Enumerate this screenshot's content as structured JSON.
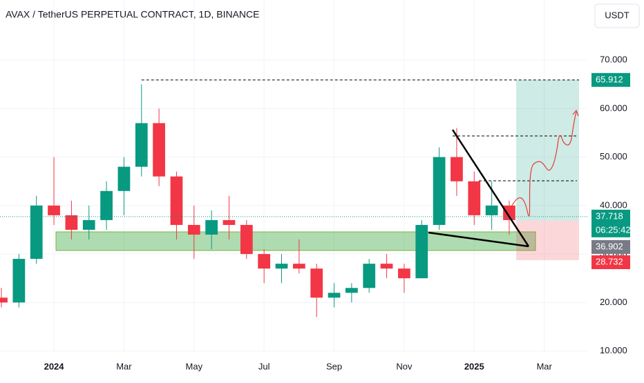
{
  "chart_data": {
    "type": "candlestick",
    "title": "AVAX / TetherUS PERPETUAL CONTRACT, 1D, BINANCE",
    "currency": "USDT",
    "x": [
      -1.5,
      -1.0,
      -0.5,
      0.0,
      0.5,
      1.0,
      1.5,
      2.0,
      2.5,
      3.0,
      3.5,
      4.0,
      4.5,
      5.0,
      5.5,
      6.0,
      6.5,
      7.0,
      7.5,
      8.0,
      8.5,
      9.0,
      9.5,
      10.0,
      10.5,
      11.0,
      11.5,
      12.0,
      12.5,
      13.0
    ],
    "open": [
      21,
      20,
      29,
      40,
      38,
      35,
      37,
      43,
      48,
      57,
      46,
      36,
      34,
      37,
      36,
      30,
      27,
      28,
      27,
      21,
      22,
      23,
      28,
      27,
      25,
      36,
      50,
      45,
      38,
      40
    ],
    "high": [
      23,
      30,
      42,
      50,
      41,
      40,
      45,
      50,
      65,
      60,
      47,
      40,
      39,
      42,
      37,
      31,
      30,
      33,
      28,
      24,
      24,
      29,
      30,
      28,
      37,
      52,
      56,
      47,
      45,
      41
    ],
    "low": [
      19,
      19,
      28,
      36,
      33,
      33,
      35,
      38,
      46,
      44,
      33,
      29,
      31,
      33,
      29,
      24,
      24,
      26,
      17,
      19,
      20,
      22,
      25,
      22,
      25,
      35,
      42,
      36,
      35,
      34
    ],
    "close": [
      20,
      29,
      40,
      38,
      35,
      37,
      43,
      48,
      57,
      46,
      36,
      34,
      37,
      36,
      30,
      27,
      28,
      27,
      21,
      22,
      23,
      28,
      27,
      25,
      36,
      50,
      45,
      38,
      40,
      37
    ],
    "up_color": "#089981",
    "down_color": "#f23645",
    "xlim": [
      -1.54,
      15.23
    ],
    "ylim": [
      9.8,
      82.4
    ],
    "xticks": [
      {
        "value": 0,
        "label": "2024"
      },
      {
        "value": 2,
        "label": "Mar"
      },
      {
        "value": 4,
        "label": "May"
      },
      {
        "value": 6,
        "label": "Jul"
      },
      {
        "value": 8,
        "label": "Sep"
      },
      {
        "value": 10,
        "label": "Nov"
      },
      {
        "value": 12,
        "label": "2025"
      },
      {
        "value": 14,
        "label": "Mar"
      }
    ],
    "yticks": [
      {
        "value": 10,
        "label": "10.000"
      },
      {
        "value": 20,
        "label": "20.000"
      },
      {
        "value": 30,
        "label": "30.000"
      },
      {
        "value": 40,
        "label": "40.000"
      },
      {
        "value": 50,
        "label": "50.000"
      },
      {
        "value": 60,
        "label": "60.000"
      },
      {
        "value": 70,
        "label": "70.000"
      }
    ],
    "grid": true,
    "last_price": 37.718,
    "countdown": "06:25:42",
    "position_entry": 36.902,
    "position_target": 65.912,
    "position_stop": 28.732
  }
}
